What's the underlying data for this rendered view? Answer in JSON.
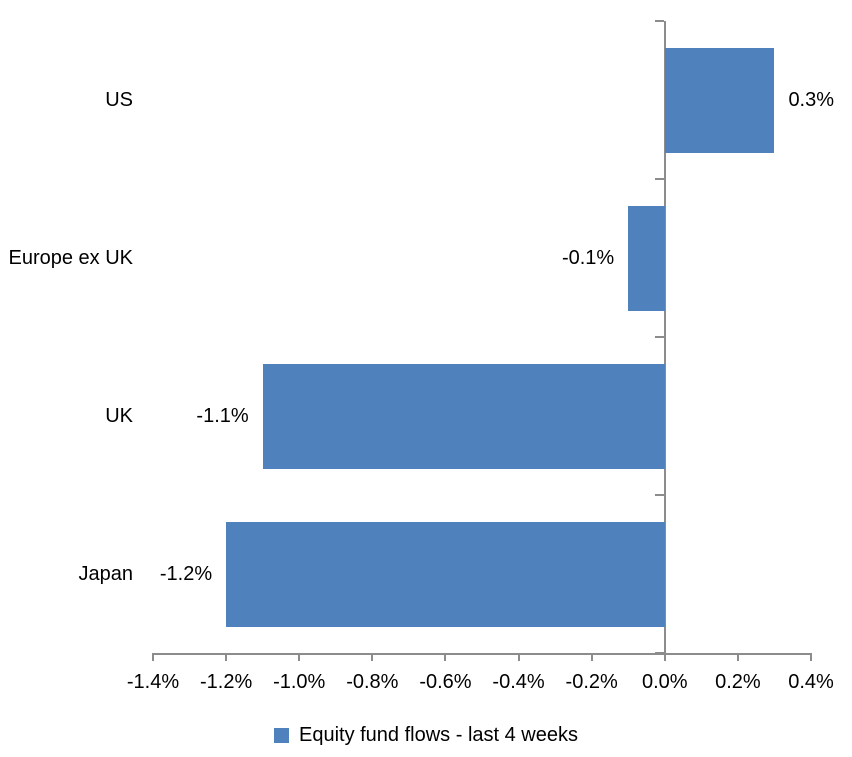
{
  "chart_data": {
    "type": "bar",
    "orientation": "horizontal",
    "title": "",
    "xlabel": "",
    "ylabel": "",
    "categories": [
      "US",
      "Europe ex UK",
      "UK",
      "Japan"
    ],
    "values": [
      0.3,
      -0.1,
      -1.1,
      -1.2
    ],
    "data_labels": [
      "0.3%",
      "-0.1%",
      "-1.1%",
      "-1.2%"
    ],
    "series_name": "Equity fund flows - last 4 weeks",
    "xlim": [
      -1.4,
      0.4
    ],
    "x_ticks": [
      -1.4,
      -1.2,
      -1.0,
      -0.8,
      -0.6,
      -0.4,
      -0.2,
      0.0,
      0.2,
      0.4
    ],
    "x_tick_labels": [
      "-1.4%",
      "-1.2%",
      "-1.0%",
      "-0.8%",
      "-0.6%",
      "-0.4%",
      "-0.2%",
      "0.0%",
      "0.2%",
      "0.4%"
    ],
    "grid": false,
    "legend_position": "bottom",
    "colors": {
      "bar": "#4F81BD",
      "axis": "#8C8C8C",
      "text": "#000000",
      "background": "#ffffff"
    }
  },
  "legend": {
    "items": [
      {
        "label": "Equity fund flows - last 4 weeks",
        "color": "#4F81BD"
      }
    ]
  }
}
